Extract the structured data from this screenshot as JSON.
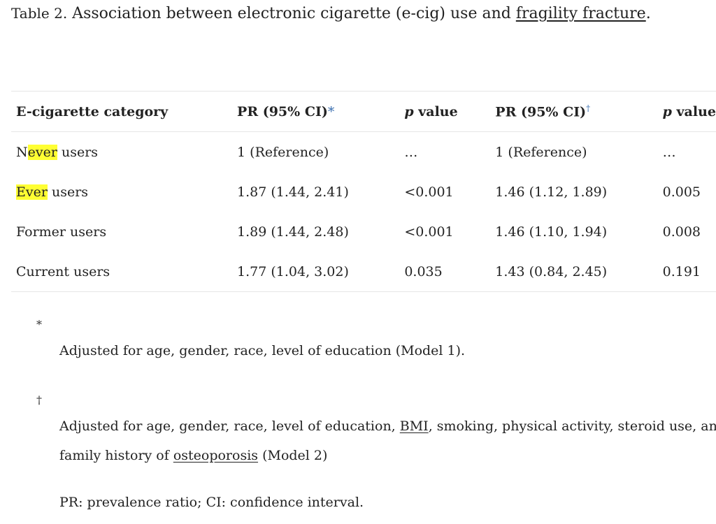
{
  "caption": {
    "label": "Table 2.",
    "text_before": " Association between electronic cigarette (e-cig) use and ",
    "link": "fragility fracture",
    "text_after": "."
  },
  "table": {
    "headers": {
      "category": "E-cigarette category",
      "pr1": "PR (95% CI)",
      "pr1_mark": "*",
      "p1": "p",
      "p1_suffix": " value",
      "pr2": "PR (95% CI)",
      "pr2_mark": "†",
      "p2": "p",
      "p2_suffix": " value"
    },
    "rows": [
      {
        "category_pre": "N",
        "category_hl": "ever",
        "category_post": " users",
        "pr1": "1 (Reference)",
        "p1": "…",
        "pr2": "1 (Reference)",
        "p2": "…"
      },
      {
        "category_pre": "",
        "category_hl": "Ever",
        "category_post": " users",
        "pr1": "1.87 (1.44, 2.41)",
        "p1": "<0.001",
        "pr2": "1.46 (1.12, 1.89)",
        "p2": "0.005"
      },
      {
        "category": "Former users",
        "pr1": "1.89 (1.44, 2.48)",
        "p1": "<0.001",
        "pr2": "1.46 (1.10, 1.94)",
        "p2": "0.008"
      },
      {
        "category": "Current users",
        "pr1": "1.77 (1.04, 3.02)",
        "p1": "0.035",
        "pr2": "1.43 (0.84, 2.45)",
        "p2": "0.191"
      }
    ]
  },
  "footnotes": {
    "fn1": {
      "symbol": "*",
      "text": "Adjusted for age, gender, race, level of education (Model 1)."
    },
    "fn2": {
      "symbol": "†",
      "text_a": "Adjusted for age, gender, race, level of education, ",
      "link_bmi": "BMI",
      "text_b": ", smoking, physical activity, steroid use, and",
      "text_c": "family history of ",
      "link_osteo": "osteoporosis",
      "text_d": " (Model 2)"
    },
    "abbrev": "PR: prevalence ratio; CI: confidence interval."
  }
}
